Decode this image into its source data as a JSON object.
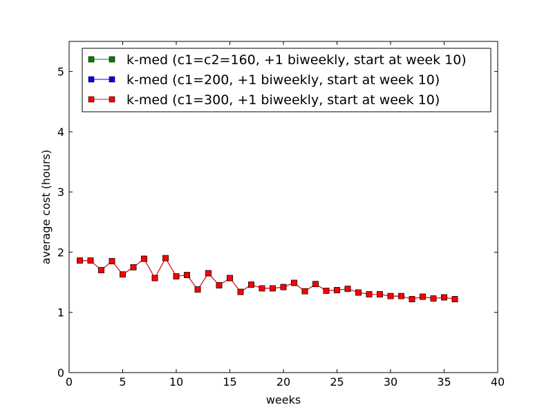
{
  "chart_data": {
    "type": "line",
    "xlabel": "weeks",
    "ylabel": "average cost (hours)",
    "xlim": [
      0,
      40
    ],
    "ylim": [
      0,
      5.5
    ],
    "xticks": [
      0,
      5,
      10,
      15,
      20,
      25,
      30,
      35,
      40
    ],
    "yticks": [
      0,
      1,
      2,
      3,
      4,
      5
    ],
    "grid": false,
    "legend_position": "top-right",
    "x": [
      1,
      2,
      3,
      4,
      5,
      6,
      7,
      8,
      9,
      10,
      11,
      12,
      13,
      14,
      15,
      16,
      17,
      18,
      19,
      20,
      21,
      22,
      23,
      24,
      25,
      26,
      27,
      28,
      29,
      30,
      31,
      32,
      33,
      34,
      35,
      36
    ],
    "series": [
      {
        "name": "k-med (c1=c2=160, +1 biweekly, start at week 10)",
        "color": "#008000",
        "marker": "square",
        "values": [
          1.86,
          1.86,
          1.7,
          1.85,
          1.63,
          1.75,
          1.89,
          1.57,
          1.9,
          1.6,
          1.62,
          1.38,
          1.65,
          1.45,
          1.57,
          1.34,
          1.46,
          1.4,
          1.4,
          1.42,
          1.49,
          1.35,
          1.47,
          1.36,
          1.37,
          1.39,
          1.33,
          1.3,
          1.3,
          1.27,
          1.27,
          1.22,
          1.26,
          1.23,
          1.25,
          1.22
        ]
      },
      {
        "name": "k-med (c1=200, +1 biweekly, start at week 10)",
        "color": "#0000ff",
        "marker": "square",
        "values": [
          1.86,
          1.86,
          1.7,
          1.85,
          1.63,
          1.75,
          1.89,
          1.57,
          1.9,
          1.6,
          1.62,
          1.38,
          1.65,
          1.45,
          1.57,
          1.34,
          1.46,
          1.4,
          1.4,
          1.42,
          1.49,
          1.35,
          1.47,
          1.36,
          1.37,
          1.39,
          1.33,
          1.3,
          1.3,
          1.27,
          1.27,
          1.22,
          1.26,
          1.23,
          1.25,
          1.22
        ]
      },
      {
        "name": "k-med (c1=300, +1 biweekly, start at week 10)",
        "color": "#ff0000",
        "marker": "square",
        "values": [
          1.86,
          1.86,
          1.7,
          1.85,
          1.63,
          1.75,
          1.89,
          1.57,
          1.9,
          1.6,
          1.62,
          1.38,
          1.65,
          1.45,
          1.57,
          1.34,
          1.46,
          1.4,
          1.4,
          1.42,
          1.49,
          1.35,
          1.47,
          1.36,
          1.37,
          1.39,
          1.33,
          1.3,
          1.3,
          1.27,
          1.27,
          1.22,
          1.26,
          1.23,
          1.25,
          1.22
        ]
      }
    ]
  }
}
